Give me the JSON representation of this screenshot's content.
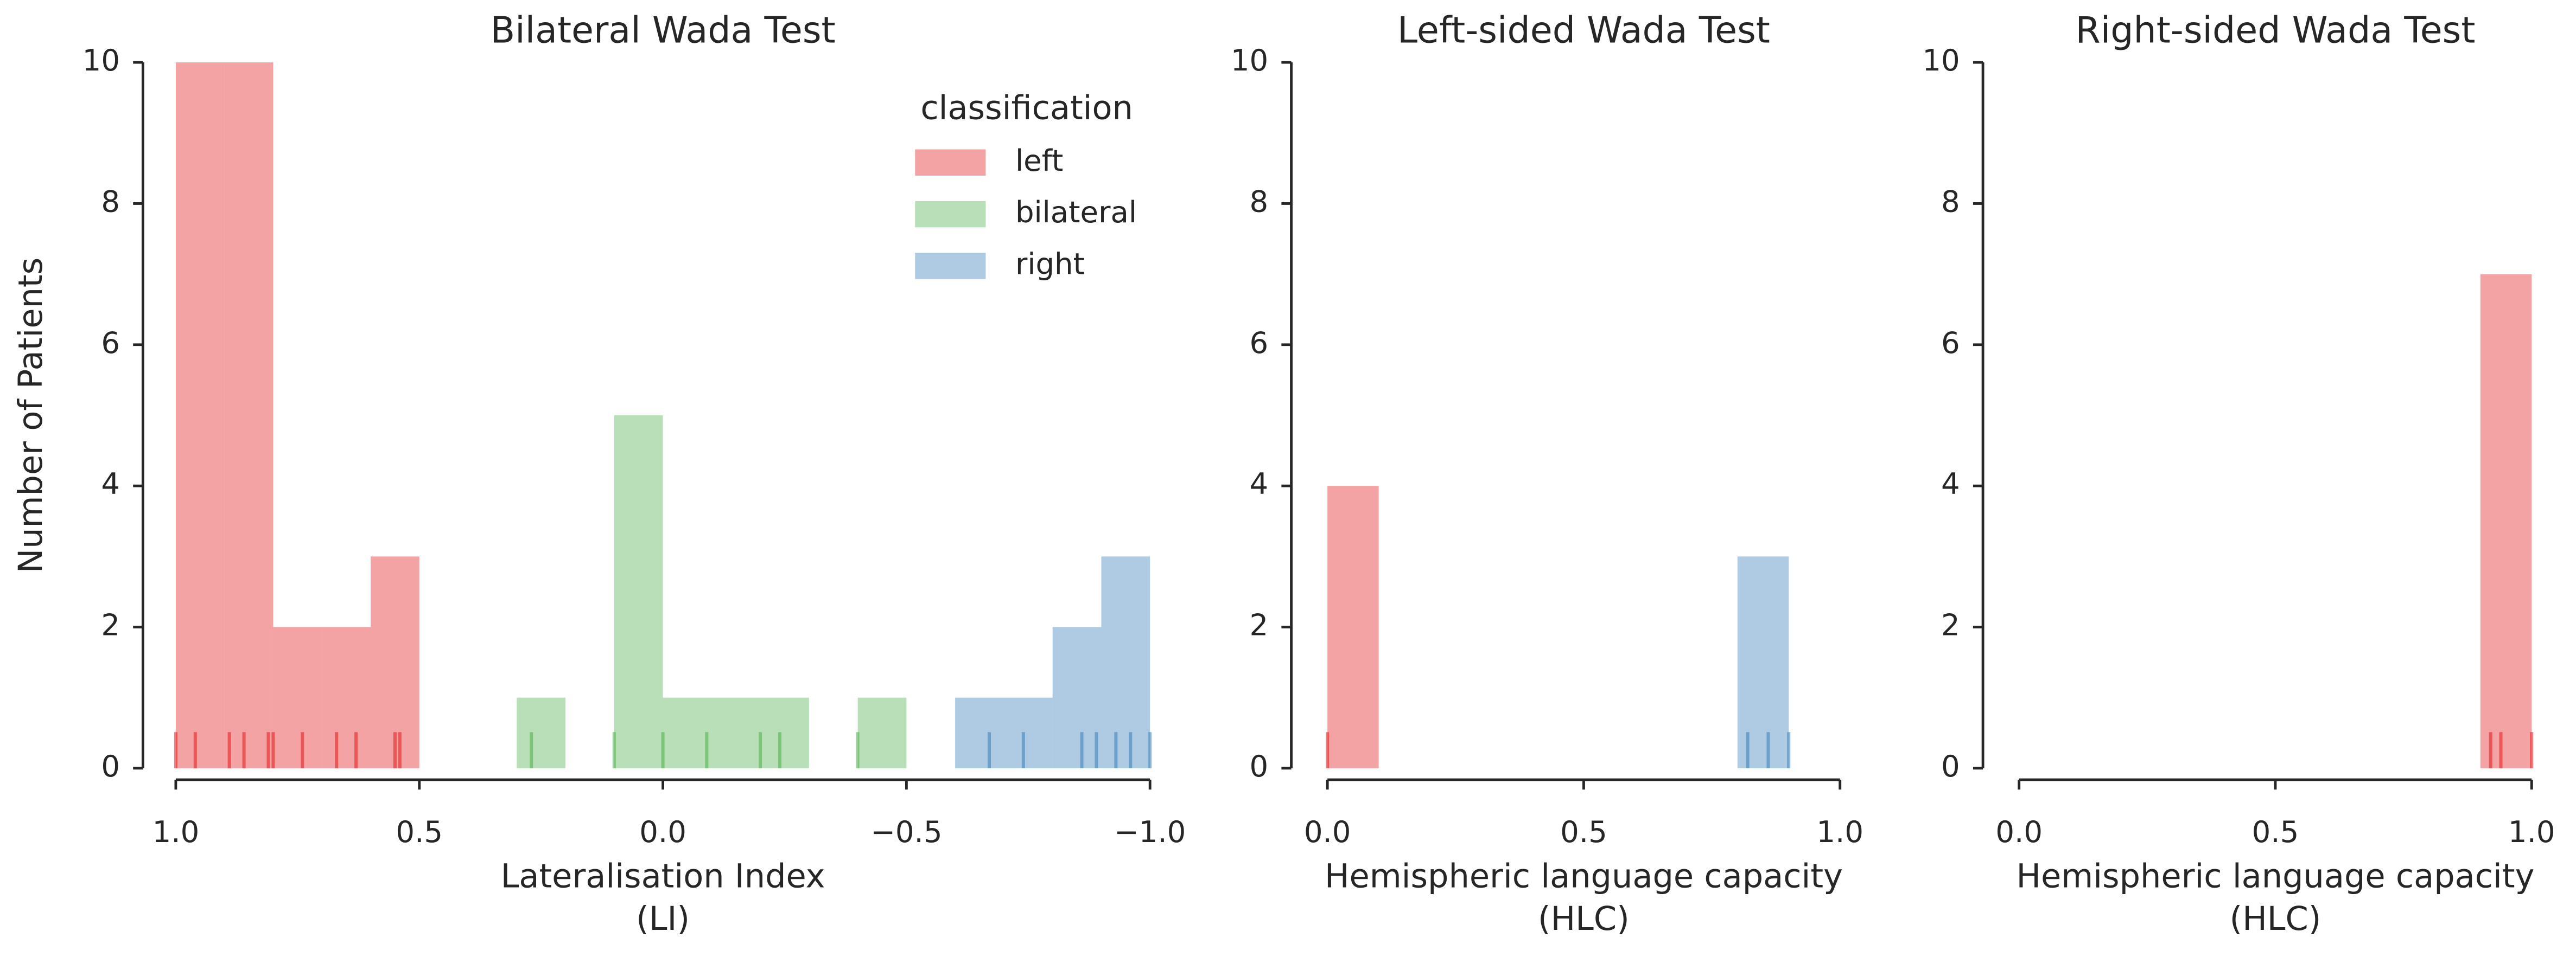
{
  "chart_data": [
    {
      "type": "histogram",
      "title": "Bilateral Wada Test",
      "xlabel": [
        "Lateralisation Index",
        "(LI)"
      ],
      "ylabel": "Number of Patients",
      "xlim": [
        1.0,
        -1.0
      ],
      "xticks": [
        {
          "value": 1.0,
          "label": "1.0"
        },
        {
          "value": 0.5,
          "label": "0.5"
        },
        {
          "value": 0,
          "label": "0.0"
        },
        {
          "value": -0.5,
          "label": "−0.5"
        },
        {
          "value": -1.0,
          "label": "−1.0"
        }
      ],
      "ylim": [
        0,
        10
      ],
      "yticks": [
        0,
        2,
        4,
        6,
        8,
        10
      ],
      "legend": {
        "title": "classification",
        "position": "upper right"
      },
      "series": [
        {
          "name": "left",
          "color": "#e41a1c",
          "bins": [
            0.5,
            0.6,
            0.7,
            0.8,
            0.9,
            1.0
          ],
          "values": [
            3,
            2,
            2,
            10,
            10
          ],
          "rug": [
            1.0,
            0.96,
            0.89,
            0.86,
            0.81,
            0.8,
            0.74,
            0.67,
            0.63,
            0.55,
            0.54
          ]
        },
        {
          "name": "bilateral",
          "color": "#4daf4a",
          "bins": [
            -0.5,
            -0.4,
            -0.3,
            -0.2,
            -0.1,
            0,
            0.1,
            0.2,
            0.3
          ],
          "values": [
            1,
            0,
            1,
            1,
            1,
            5,
            0,
            1
          ],
          "rug": [
            0.27,
            0.1,
            0,
            -0.09,
            -0.2,
            -0.24,
            -0.4
          ]
        },
        {
          "name": "right",
          "color": "#377eb8",
          "bins": [
            -1.0,
            -0.9,
            -0.8,
            -0.7,
            -0.6
          ],
          "values": [
            3,
            2,
            1,
            1
          ],
          "rug": [
            -0.67,
            -0.74,
            -0.86,
            -0.89,
            -0.93,
            -0.96,
            -1.0
          ]
        }
      ]
    },
    {
      "type": "histogram",
      "title": "Left-sided Wada Test",
      "xlabel": [
        "Hemispheric language capacity",
        "(HLC)"
      ],
      "xlim": [
        0,
        1.0
      ],
      "xticks": [
        {
          "value": 0,
          "label": "0.0"
        },
        0.5,
        {
          "value": 1.0,
          "label": "1.0"
        }
      ],
      "ylim": [
        0,
        10
      ],
      "yticks": [
        0,
        2,
        4,
        6,
        8,
        10
      ],
      "series": [
        {
          "color": "#e41a1c",
          "bins": [
            0,
            0.1
          ],
          "values": [
            4
          ],
          "rug": [
            0
          ]
        },
        {
          "color": "#377eb8",
          "bins": [
            0.8,
            0.9
          ],
          "values": [
            3
          ],
          "rug": [
            0.82,
            0.86,
            0.9
          ]
        }
      ]
    },
    {
      "type": "histogram",
      "title": "Right-sided Wada Test",
      "xlabel": [
        "Hemispheric language capacity",
        "(HLC)"
      ],
      "xlim": [
        0,
        1.0
      ],
      "xticks": [
        {
          "value": 0,
          "label": "0.0"
        },
        0.5,
        {
          "value": 1.0,
          "label": "1.0"
        }
      ],
      "ylim": [
        0,
        10
      ],
      "yticks": [
        0,
        2,
        4,
        6,
        8,
        10
      ],
      "series": [
        {
          "color": "#e41a1c",
          "bins": [
            0.9,
            1.0
          ],
          "values": [
            7
          ],
          "rug": [
            0.92,
            0.94,
            1.0
          ]
        }
      ]
    }
  ]
}
